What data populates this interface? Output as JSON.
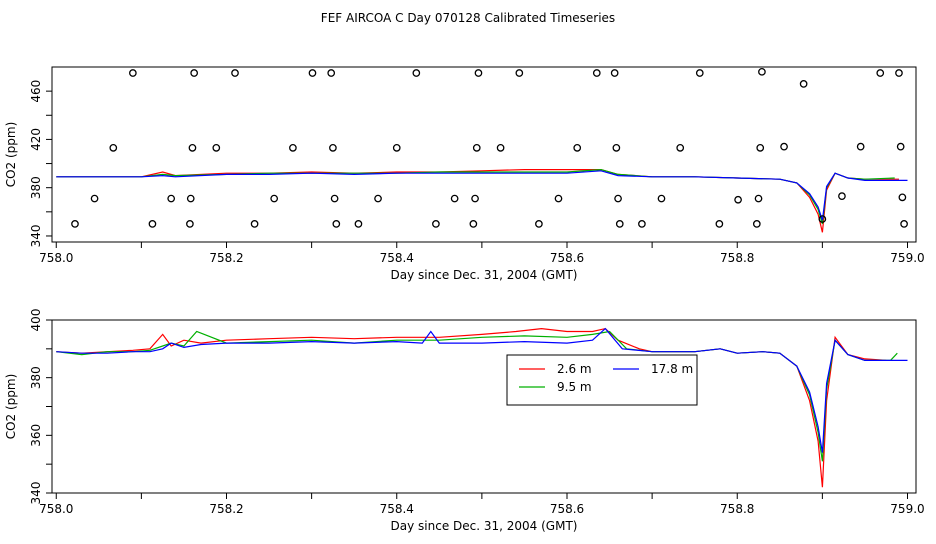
{
  "title": "FEF AIRCOA C  Day 070128  Calibrated Timeseries",
  "colors": {
    "series_2_6m": "#ff0000",
    "series_9_5m": "#00b000",
    "series_17_8m": "#0000ff",
    "axis": "#000000",
    "background": "#ffffff"
  },
  "chart_data": [
    {
      "type": "line",
      "xlabel": "Day since Dec. 31, 2004 (GMT)",
      "ylabel": "CO2 (ppm)",
      "xlim": [
        757.995,
        759.01
      ],
      "ylim": [
        335,
        480
      ],
      "x_ticks": [
        "758.0",
        "758.2",
        "758.4",
        "758.6",
        "758.8",
        "759.0"
      ],
      "y_ticks": [
        "340",
        "380",
        "420",
        "460"
      ],
      "grid": false,
      "scatter_points": [
        {
          "x": 758.022,
          "y": 350
        },
        {
          "x": 758.045,
          "y": 371
        },
        {
          "x": 758.067,
          "y": 413
        },
        {
          "x": 758.09,
          "y": 475
        },
        {
          "x": 758.113,
          "y": 350
        },
        {
          "x": 758.135,
          "y": 371
        },
        {
          "x": 758.157,
          "y": 350
        },
        {
          "x": 758.158,
          "y": 371
        },
        {
          "x": 758.16,
          "y": 413
        },
        {
          "x": 758.162,
          "y": 475
        },
        {
          "x": 758.188,
          "y": 413
        },
        {
          "x": 758.21,
          "y": 475
        },
        {
          "x": 758.233,
          "y": 350
        },
        {
          "x": 758.256,
          "y": 371
        },
        {
          "x": 758.278,
          "y": 413
        },
        {
          "x": 758.301,
          "y": 475
        },
        {
          "x": 758.323,
          "y": 475
        },
        {
          "x": 758.325,
          "y": 413
        },
        {
          "x": 758.327,
          "y": 371
        },
        {
          "x": 758.329,
          "y": 350
        },
        {
          "x": 758.355,
          "y": 350
        },
        {
          "x": 758.378,
          "y": 371
        },
        {
          "x": 758.4,
          "y": 413
        },
        {
          "x": 758.423,
          "y": 475
        },
        {
          "x": 758.446,
          "y": 350
        },
        {
          "x": 758.468,
          "y": 371
        },
        {
          "x": 758.49,
          "y": 350
        },
        {
          "x": 758.492,
          "y": 371
        },
        {
          "x": 758.494,
          "y": 413
        },
        {
          "x": 758.496,
          "y": 475
        },
        {
          "x": 758.522,
          "y": 413
        },
        {
          "x": 758.544,
          "y": 475
        },
        {
          "x": 758.567,
          "y": 350
        },
        {
          "x": 758.59,
          "y": 371
        },
        {
          "x": 758.612,
          "y": 413
        },
        {
          "x": 758.635,
          "y": 475
        },
        {
          "x": 758.656,
          "y": 475
        },
        {
          "x": 758.658,
          "y": 413
        },
        {
          "x": 758.66,
          "y": 371
        },
        {
          "x": 758.662,
          "y": 350
        },
        {
          "x": 758.688,
          "y": 350
        },
        {
          "x": 758.711,
          "y": 371
        },
        {
          "x": 758.733,
          "y": 413
        },
        {
          "x": 758.756,
          "y": 475
        },
        {
          "x": 758.779,
          "y": 350
        },
        {
          "x": 758.801,
          "y": 370
        },
        {
          "x": 758.823,
          "y": 350
        },
        {
          "x": 758.825,
          "y": 371
        },
        {
          "x": 758.827,
          "y": 413
        },
        {
          "x": 758.829,
          "y": 476
        },
        {
          "x": 758.855,
          "y": 414
        },
        {
          "x": 758.878,
          "y": 466
        },
        {
          "x": 758.9,
          "y": 354
        },
        {
          "x": 758.923,
          "y": 373
        },
        {
          "x": 758.945,
          "y": 414
        },
        {
          "x": 758.968,
          "y": 475
        },
        {
          "x": 758.99,
          "y": 475
        },
        {
          "x": 758.992,
          "y": 414
        },
        {
          "x": 758.994,
          "y": 372
        },
        {
          "x": 758.996,
          "y": 350
        }
      ],
      "series": [
        {
          "name": "2.6 m",
          "x": [
            758.0,
            758.05,
            758.1,
            758.125,
            758.14,
            758.2,
            758.25,
            758.3,
            758.35,
            758.4,
            758.45,
            758.5,
            758.55,
            758.6,
            758.64,
            758.66,
            758.7,
            758.75,
            758.8,
            758.85,
            758.87,
            758.885,
            758.895,
            758.9,
            758.905,
            758.915,
            758.93,
            758.95,
            758.99
          ],
          "values": [
            389,
            389,
            389,
            393,
            390,
            392,
            392,
            393,
            392,
            393,
            393,
            394,
            395,
            395,
            395,
            391,
            389,
            389,
            388,
            387,
            384,
            372,
            358,
            343,
            378,
            392,
            388,
            387,
            387
          ]
        },
        {
          "name": "9.5 m",
          "x": [
            758.0,
            758.05,
            758.1,
            758.125,
            758.14,
            758.2,
            758.25,
            758.3,
            758.35,
            758.4,
            758.45,
            758.5,
            758.55,
            758.6,
            758.64,
            758.66,
            758.7,
            758.75,
            758.8,
            758.85,
            758.87,
            758.885,
            758.895,
            758.9,
            758.905,
            758.915,
            758.93,
            758.95,
            758.985
          ],
          "values": [
            389,
            389,
            389,
            391,
            390,
            391,
            392,
            392,
            392,
            392,
            393,
            393,
            393,
            393,
            395,
            391,
            389,
            389,
            388,
            387,
            384,
            374,
            362,
            350,
            380,
            392,
            388,
            387,
            388
          ]
        },
        {
          "name": "17.8 m",
          "x": [
            758.0,
            758.05,
            758.1,
            758.125,
            758.14,
            758.2,
            758.25,
            758.3,
            758.35,
            758.4,
            758.45,
            758.5,
            758.55,
            758.6,
            758.64,
            758.66,
            758.7,
            758.75,
            758.8,
            758.85,
            758.87,
            758.885,
            758.895,
            758.9,
            758.905,
            758.915,
            758.93,
            758.95,
            759.0
          ],
          "values": [
            389,
            389,
            389,
            390,
            389,
            391,
            391,
            392,
            391,
            392,
            392,
            392,
            392,
            392,
            394,
            390,
            389,
            389,
            388,
            387,
            384,
            375,
            364,
            353,
            381,
            392,
            388,
            386,
            386
          ]
        }
      ]
    },
    {
      "type": "line",
      "xlabel": "Day since Dec. 31, 2004 (GMT)",
      "ylabel": "CO2 (ppm)",
      "xlim": [
        757.995,
        759.01
      ],
      "ylim": [
        340,
        400
      ],
      "x_ticks": [
        "758.0",
        "758.2",
        "758.4",
        "758.6",
        "758.8",
        "759.0"
      ],
      "y_ticks": [
        "340",
        "360",
        "380",
        "400"
      ],
      "grid": false,
      "legend_position": "center-right",
      "series": [
        {
          "name": "2.6 m",
          "x": [
            758.0,
            758.03,
            758.06,
            758.09,
            758.11,
            758.125,
            758.135,
            758.15,
            758.17,
            758.2,
            758.25,
            758.3,
            758.35,
            758.4,
            758.45,
            758.5,
            758.54,
            758.57,
            758.6,
            758.63,
            758.645,
            758.66,
            758.685,
            758.7,
            758.75,
            758.78,
            758.8,
            758.83,
            758.85,
            758.87,
            758.885,
            758.895,
            758.9,
            758.905,
            758.915,
            758.93,
            758.95,
            758.975
          ],
          "values": [
            389,
            388.5,
            389,
            389.5,
            390,
            395,
            391,
            393,
            392,
            393,
            393.5,
            394,
            393.5,
            394,
            394,
            395,
            396,
            397,
            396,
            396,
            397,
            393,
            390,
            389,
            389,
            390,
            388.5,
            389,
            388.5,
            384,
            372,
            358,
            342,
            372,
            394,
            388,
            386.5,
            386
          ]
        },
        {
          "name": "9.5 m",
          "x": [
            758.0,
            758.03,
            758.06,
            758.09,
            758.11,
            758.125,
            758.135,
            758.15,
            758.165,
            758.2,
            758.25,
            758.3,
            758.35,
            758.4,
            758.45,
            758.5,
            758.55,
            758.6,
            758.63,
            758.65,
            758.67,
            758.7,
            758.75,
            758.78,
            758.8,
            758.83,
            758.85,
            758.87,
            758.885,
            758.895,
            758.9,
            758.905,
            758.915,
            758.93,
            758.95,
            758.98,
            758.988
          ],
          "values": [
            389,
            388,
            389,
            389,
            389.5,
            391,
            392,
            391,
            396,
            392,
            392.5,
            393,
            392,
            393,
            393,
            394,
            394.5,
            394,
            395,
            396,
            390,
            389,
            389,
            390,
            388.5,
            389,
            388.5,
            384,
            374,
            361,
            351,
            376,
            393,
            388,
            386,
            386,
            388.5
          ]
        },
        {
          "name": "17.8 m",
          "x": [
            758.0,
            758.03,
            758.06,
            758.09,
            758.11,
            758.125,
            758.135,
            758.15,
            758.17,
            758.2,
            758.25,
            758.3,
            758.35,
            758.4,
            758.43,
            758.44,
            758.45,
            758.5,
            758.55,
            758.6,
            758.63,
            758.645,
            758.665,
            758.7,
            758.75,
            758.78,
            758.8,
            758.83,
            758.85,
            758.87,
            758.885,
            758.895,
            758.9,
            758.905,
            758.915,
            758.93,
            758.95,
            759.0
          ],
          "values": [
            389,
            388.5,
            388.5,
            389,
            389,
            390,
            392,
            390.5,
            391.5,
            392,
            392,
            392.5,
            392,
            392.5,
            392,
            396,
            392,
            392,
            392.5,
            392,
            393,
            397,
            390,
            389,
            389,
            390,
            388.5,
            389,
            388.5,
            384,
            375,
            363,
            354,
            378,
            393,
            388,
            386,
            386
          ]
        }
      ]
    }
  ]
}
